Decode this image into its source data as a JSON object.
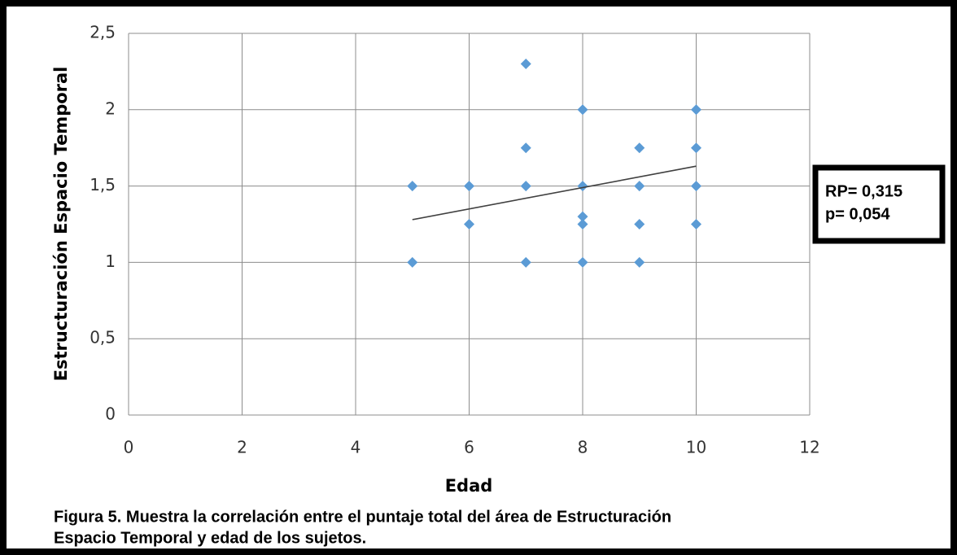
{
  "chart_data": {
    "type": "scatter",
    "x_label": "Edad",
    "y_label": "Estructuración Espacio Temporal",
    "x": [
      5,
      5,
      6,
      6,
      7,
      7,
      7,
      7,
      8,
      8,
      8,
      8,
      8,
      9,
      9,
      9,
      9,
      10,
      10,
      10,
      10
    ],
    "series": [
      {
        "color": "#5b9bd5",
        "values": [
          1.5,
          1,
          1.5,
          1.25,
          2.3,
          1.75,
          1.5,
          1,
          2,
          1.5,
          1.3,
          1.25,
          1,
          1.75,
          1.5,
          1.25,
          1,
          2,
          1.75,
          1.5,
          1.25
        ]
      }
    ],
    "trendline": {
      "x": [
        5,
        10
      ],
      "y": [
        1.28,
        1.63
      ],
      "color": "#404040"
    },
    "xlim": [
      0,
      12
    ],
    "xticks": [
      0,
      2,
      4,
      6,
      8,
      10,
      12
    ],
    "ylim": [
      0,
      2.5
    ],
    "yticks": [
      0,
      {
        "value": 0.5,
        "label": "0,5"
      },
      1,
      {
        "value": 1.5,
        "label": "1,5"
      },
      2,
      {
        "value": 2.5,
        "label": "2,5"
      }
    ],
    "grid": true,
    "annotation": [
      "RP= 0,315",
      "p= 0,054"
    ],
    "caption": [
      "Figura 5. Muestra la correlación entre el puntaje total del área de Estructuración",
      "Espacio Temporal y edad de los sujetos."
    ]
  }
}
